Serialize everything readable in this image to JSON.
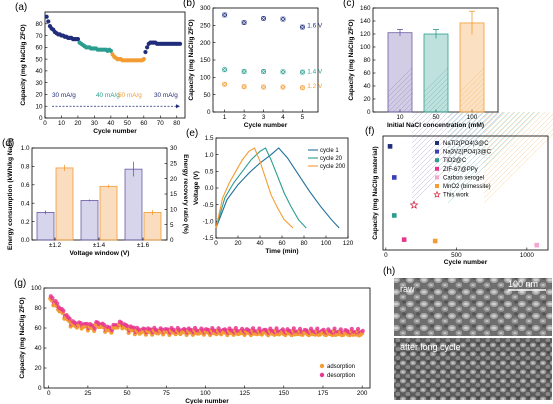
{
  "colors": {
    "navy": "#1f2d7a",
    "teal": "#2a9d8f",
    "orange": "#f39c34",
    "purple": "#6b5aa6",
    "pink": "#e8368f",
    "red": "#d7263d"
  },
  "panels": [
    {
      "id": "a",
      "label": "(a)",
      "ylabel": "Capacity (mg NaCl/g ZFO)",
      "xlabel": "Cycle number",
      "xticks": [
        0,
        10,
        20,
        30,
        40,
        50,
        60,
        70,
        80
      ],
      "yticks": [
        0,
        10,
        20,
        30,
        40,
        50,
        60,
        70,
        80
      ],
      "annotations": [
        "30 mA/g",
        "40 mA/g",
        "50 mA/g",
        "30 mA/g"
      ]
    },
    {
      "id": "b",
      "label": "(b)",
      "ylabel": "Capacity (mg NaCl/g ZFO)",
      "xlabel": "Cycle number",
      "xticks": [
        1,
        2,
        3,
        4,
        5
      ],
      "yticks": [
        0,
        50,
        100,
        150,
        200,
        250,
        300
      ],
      "series_labels": [
        "1.6 V",
        "1.4 V",
        "1.2 V"
      ]
    },
    {
      "id": "c",
      "label": "(c)",
      "ylabel": "Capacity (mg NaCl/g ZFO)",
      "xlabel": "Initial NaCl concentration (mM)",
      "xticks": [
        "10",
        "50",
        "100"
      ],
      "yticks": [
        0,
        20,
        40,
        60,
        80,
        100,
        120,
        140,
        160
      ]
    },
    {
      "id": "d",
      "label": "(d)",
      "ylabel": "Energy consumption (kWh/kg NaCl)",
      "ylabel2": "Energy recovery ratio (%)",
      "xlabel": "Voltage window (V)",
      "xticks": [
        "±1.2",
        "±1.4",
        "±1.6"
      ],
      "yticks": [
        "0.0",
        "0.2",
        "0.4",
        "0.6",
        "0.8",
        "1.0"
      ],
      "yticks2": [
        "0",
        "5",
        "10",
        "15",
        "20",
        "25",
        "30"
      ]
    },
    {
      "id": "e",
      "label": "(e)",
      "ylabel": "Voltage (V)",
      "xlabel": "Time (min)",
      "xticks": [
        0,
        20,
        40,
        60,
        80,
        100,
        120
      ],
      "yticks": [
        "-1.5",
        "-1.0",
        "-0.5",
        "0.0",
        "0.5",
        "1.0",
        "1.5"
      ],
      "legend": [
        "cycle 1",
        "cycle 20",
        "cycle 200"
      ]
    },
    {
      "id": "f",
      "label": "(f)",
      "ylabel": "Capacity (mg NaCl/g material)",
      "xlabel": "Cycle number",
      "xticks": [
        0,
        500,
        1000
      ],
      "legend": [
        "NaTi2(PO4)3@C",
        "Na3V2(PO4)3@C",
        "TiO2@C",
        "ZIF-67@PPy",
        "Carbon xerogel",
        "MnO2 (birnessite)",
        "This work"
      ]
    },
    {
      "id": "g",
      "label": "(g)",
      "ylabel": "Capacity (mg NaCl/g ZFO)",
      "xlabel": "Cycle number",
      "xticks": [
        0,
        25,
        50,
        75,
        100,
        125,
        150,
        175,
        200
      ],
      "yticks": [
        0,
        20,
        40,
        60,
        80,
        100
      ],
      "legend": [
        "adsorption",
        "desorption"
      ]
    },
    {
      "id": "h",
      "label": "(h)",
      "photo_labels": [
        "raw",
        "after long cycle"
      ],
      "scale_bar": "100 nm"
    }
  ],
  "chart_data": [
    {
      "panel": "a",
      "type": "scatter",
      "xlim": [
        0,
        85
      ],
      "ylim": [
        0,
        90
      ],
      "series": [
        {
          "rate": "30 mA/g",
          "x": [
            1,
            2,
            3,
            4,
            5,
            6,
            7,
            8,
            9,
            10,
            11,
            12,
            13,
            14,
            15,
            16,
            17,
            18,
            19,
            20
          ],
          "y": [
            86,
            82,
            78,
            76,
            75,
            73,
            72,
            71,
            71,
            70,
            70,
            69,
            69,
            68,
            68,
            68,
            67,
            67,
            67,
            67
          ]
        },
        {
          "rate": "40 mA/g",
          "x": [
            21,
            22,
            23,
            24,
            25,
            26,
            27,
            28,
            29,
            30,
            31,
            32,
            33,
            34,
            35,
            36,
            37,
            38,
            39,
            40
          ],
          "y": [
            64,
            63,
            62,
            61,
            60,
            60,
            60,
            59,
            59,
            59,
            59,
            58,
            58,
            58,
            58,
            58,
            58,
            57,
            58,
            57
          ]
        },
        {
          "rate": "50 mA/g",
          "x": [
            41,
            42,
            43,
            44,
            45,
            46,
            47,
            48,
            49,
            50,
            51,
            52,
            53,
            54,
            55,
            56,
            57,
            58,
            59,
            60
          ],
          "y": [
            54,
            52,
            51,
            50,
            50,
            50,
            49,
            49,
            49,
            49,
            49,
            49,
            49,
            49,
            49,
            49,
            49,
            49,
            49,
            50
          ]
        },
        {
          "rate": "30 mA/g",
          "x": [
            61,
            62,
            63,
            64,
            65,
            66,
            67,
            68,
            69,
            70,
            71,
            72,
            73,
            74,
            75,
            76,
            77,
            78,
            79,
            80,
            81,
            82
          ],
          "y": [
            56,
            60,
            63,
            64,
            64,
            64,
            64,
            63,
            63,
            63,
            63,
            63,
            63,
            63,
            63,
            63,
            63,
            63,
            63,
            63,
            63,
            63
          ]
        }
      ]
    },
    {
      "panel": "b",
      "type": "scatter",
      "categories": [
        1,
        2,
        3,
        4,
        5
      ],
      "ylim": [
        0,
        300
      ],
      "series": [
        {
          "name": "1.6 V",
          "values": [
            280,
            258,
            270,
            268,
            245
          ]
        },
        {
          "name": "1.4 V",
          "values": [
            122,
            117,
            117,
            116,
            115
          ]
        },
        {
          "name": "1.2 V",
          "values": [
            80,
            73,
            72,
            72,
            70
          ]
        }
      ]
    },
    {
      "panel": "c",
      "type": "bar",
      "categories": [
        "10",
        "50",
        "100"
      ],
      "values": [
        122,
        120,
        137
      ],
      "errors": [
        5,
        7,
        18
      ],
      "ylim": [
        0,
        160
      ]
    },
    {
      "panel": "d",
      "type": "bar",
      "categories": [
        "±1.2",
        "±1.4",
        "±1.6"
      ],
      "series": [
        {
          "axis": "left",
          "values": [
            0.3,
            0.43,
            0.77
          ],
          "errors": [
            0.02,
            0.01,
            0.08
          ]
        },
        {
          "axis": "right",
          "values": [
            23.5,
            17.5,
            9
          ],
          "errors": [
            1,
            0.5,
            0.8
          ]
        }
      ],
      "ylim": [
        0,
        1.0
      ],
      "ylim2": [
        0,
        30
      ]
    },
    {
      "panel": "e",
      "type": "line",
      "xlim": [
        0,
        120
      ],
      "ylim": [
        -1.5,
        1.5
      ],
      "series": [
        {
          "name": "cycle 1",
          "x": [
            0,
            10,
            20,
            30,
            40,
            50,
            57,
            65,
            75,
            85,
            95,
            105,
            112
          ],
          "y": [
            -1.2,
            -0.35,
            0.1,
            0.45,
            0.75,
            1.0,
            1.2,
            0.9,
            0.4,
            -0.1,
            -0.55,
            -0.95,
            -1.2
          ]
        },
        {
          "name": "cycle 20",
          "x": [
            0,
            8,
            16,
            24,
            32,
            40,
            45,
            50,
            56,
            62,
            68,
            75,
            82
          ],
          "y": [
            -1.2,
            -0.3,
            0.15,
            0.5,
            0.85,
            1.1,
            1.2,
            0.85,
            0.35,
            -0.15,
            -0.55,
            -0.95,
            -1.2
          ]
        },
        {
          "name": "cycle 200",
          "x": [
            0,
            6,
            12,
            18,
            24,
            30,
            35,
            40,
            45,
            50,
            56,
            62,
            70
          ],
          "y": [
            -1.2,
            -0.3,
            0.15,
            0.5,
            0.85,
            1.1,
            1.2,
            0.8,
            0.3,
            -0.2,
            -0.6,
            -0.95,
            -1.2
          ]
        }
      ]
    },
    {
      "panel": "f",
      "type": "scatter",
      "xlim": [
        0,
        1150
      ],
      "series": [
        {
          "name": "NaTi2(PO4)3@C",
          "x": [
            30
          ],
          "y": [
            145
          ]
        },
        {
          "name": "Na3V2(PO4)3@C",
          "x": [
            60
          ],
          "y": [
            100
          ]
        },
        {
          "name": "TiO2@C",
          "x": [
            60
          ],
          "y": [
            45
          ]
        },
        {
          "name": "ZIF-67@PPy",
          "x": [
            130
          ],
          "y": [
            10
          ]
        },
        {
          "name": "Carbon xerogel",
          "x": [
            1070
          ],
          "y": [
            2
          ]
        },
        {
          "name": "MnO2 (birnessite)",
          "x": [
            350
          ],
          "y": [
            8
          ]
        },
        {
          "name": "This work",
          "x": [
            200
          ],
          "y": [
            60
          ]
        }
      ]
    },
    {
      "panel": "g",
      "type": "scatter",
      "xlim": [
        0,
        205
      ],
      "ylim": [
        0,
        100
      ],
      "series": [
        {
          "name": "adsorption"
        },
        {
          "name": "desorption"
        }
      ]
    }
  ]
}
